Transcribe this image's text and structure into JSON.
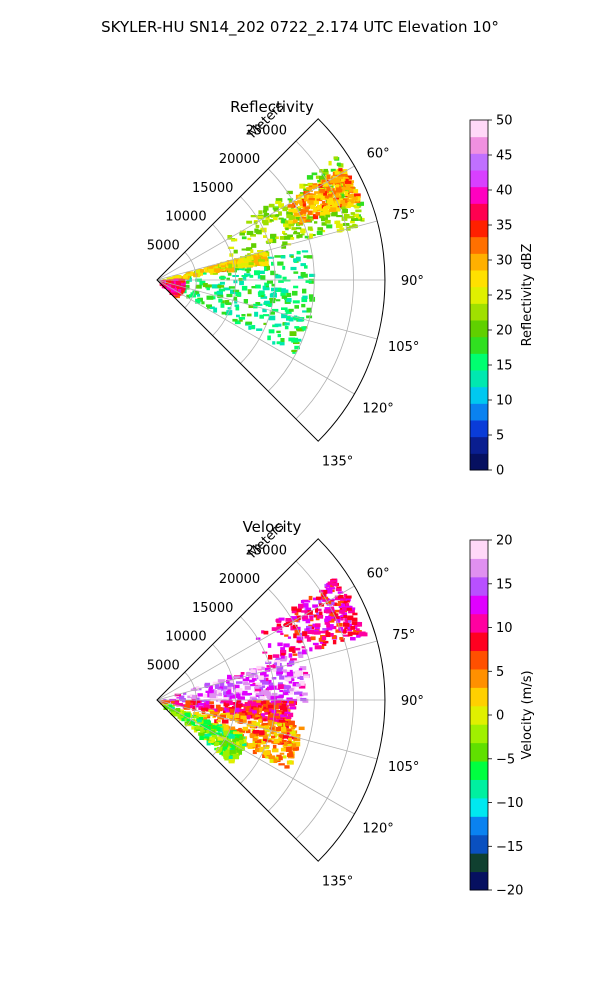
{
  "figure": {
    "title": "SKYLER-HU  SN14_202  0722_2.174 UTC Elevation 10°"
  },
  "chart_data": [
    {
      "type": "heatmap",
      "projection": "polar-sector",
      "title": "Reflectivity",
      "radial_label": "Meters",
      "radial_ticks": [
        5000,
        10000,
        15000,
        20000,
        25000
      ],
      "radial_tick_labels": [
        "5000",
        "10000",
        "15000",
        "20000",
        "25000"
      ],
      "rmax": 29000,
      "angular_range_deg": [
        45,
        135
      ],
      "angular_ticks": [
        60,
        75,
        90,
        105,
        120,
        135
      ],
      "angular_tick_labels": [
        "60°",
        "75°",
        "90°",
        "105°",
        "120°",
        "135°"
      ],
      "grid": true,
      "colorbar": {
        "label": "Reflectivity dBZ",
        "range": [
          0,
          50
        ],
        "ticks": [
          0,
          5,
          10,
          15,
          20,
          25,
          30,
          35,
          40,
          45,
          50
        ],
        "tick_labels": [
          "0",
          "5",
          "10",
          "15",
          "20",
          "25",
          "30",
          "35",
          "40",
          "45",
          "50"
        ],
        "colors": [
          "#061060",
          "#0a1e90",
          "#0a3cd8",
          "#0a82f0",
          "#00c8f0",
          "#00e8b0",
          "#00ff70",
          "#30e020",
          "#60d000",
          "#a0e000",
          "#e0f000",
          "#ffe000",
          "#ffb000",
          "#ff7000",
          "#ff2000",
          "#ff0050",
          "#ff00c0",
          "#d840ff",
          "#c070ff",
          "#f090e0",
          "#ffd8f8"
        ]
      },
      "echo_regions": [
        {
          "azimuth_deg": [
            78,
            118
          ],
          "range_m": [
            200,
            19500
          ],
          "value": 16
        },
        {
          "azimuth_deg": [
            55,
            75
          ],
          "range_m": [
            9000,
            27500
          ],
          "value": 22
        },
        {
          "azimuth_deg": [
            74,
            80
          ],
          "range_m": [
            500,
            14000
          ],
          "value": 27
        },
        {
          "azimuth_deg": [
            58,
            68
          ],
          "range_m": [
            18000,
            27500
          ],
          "value": 30
        },
        {
          "azimuth_deg": [
            85,
            130
          ],
          "range_m": [
            0,
            3000
          ],
          "value": 37
        }
      ]
    },
    {
      "type": "heatmap",
      "projection": "polar-sector",
      "title": "Velocity",
      "radial_label": "Meters",
      "radial_ticks": [
        5000,
        10000,
        15000,
        20000,
        25000
      ],
      "radial_tick_labels": [
        "5000",
        "10000",
        "15000",
        "20000",
        "25000"
      ],
      "rmax": 29000,
      "angular_range_deg": [
        45,
        135
      ],
      "angular_ticks": [
        60,
        75,
        90,
        105,
        120,
        135
      ],
      "angular_tick_labels": [
        "60°",
        "75°",
        "90°",
        "105°",
        "120°",
        "135°"
      ],
      "grid": true,
      "colorbar": {
        "label": "Velocity (m/s)",
        "range": [
          -20,
          20
        ],
        "ticks": [
          -20,
          -15,
          -10,
          -5,
          0,
          5,
          10,
          15,
          20
        ],
        "tick_labels": [
          "−20",
          "−15",
          "−10",
          "−5",
          "0",
          "5",
          "10",
          "15",
          "20"
        ],
        "colors": [
          "#061060",
          "#104030",
          "#0a50c0",
          "#0a82f0",
          "#00e8f0",
          "#00f0a0",
          "#00ff40",
          "#60e000",
          "#a0f000",
          "#e0f000",
          "#ffd000",
          "#ff9000",
          "#ff5000",
          "#ff0020",
          "#ff00a0",
          "#e000ff",
          "#b850ff",
          "#e090f0",
          "#ffd8f8"
        ]
      },
      "echo_regions": [
        {
          "azimuth_deg": [
            70,
            90
          ],
          "range_m": [
            200,
            19000
          ],
          "value": 15
        },
        {
          "azimuth_deg": [
            90,
            100
          ],
          "range_m": [
            0,
            17000
          ],
          "value": 9
        },
        {
          "azimuth_deg": [
            100,
            118
          ],
          "range_m": [
            3000,
            18500
          ],
          "value": 4
        },
        {
          "azimuth_deg": [
            112,
            130
          ],
          "range_m": [
            0,
            12000
          ],
          "value": -4
        },
        {
          "azimuth_deg": [
            55,
            72
          ],
          "range_m": [
            14000,
            27500
          ],
          "value": 10
        }
      ]
    }
  ]
}
